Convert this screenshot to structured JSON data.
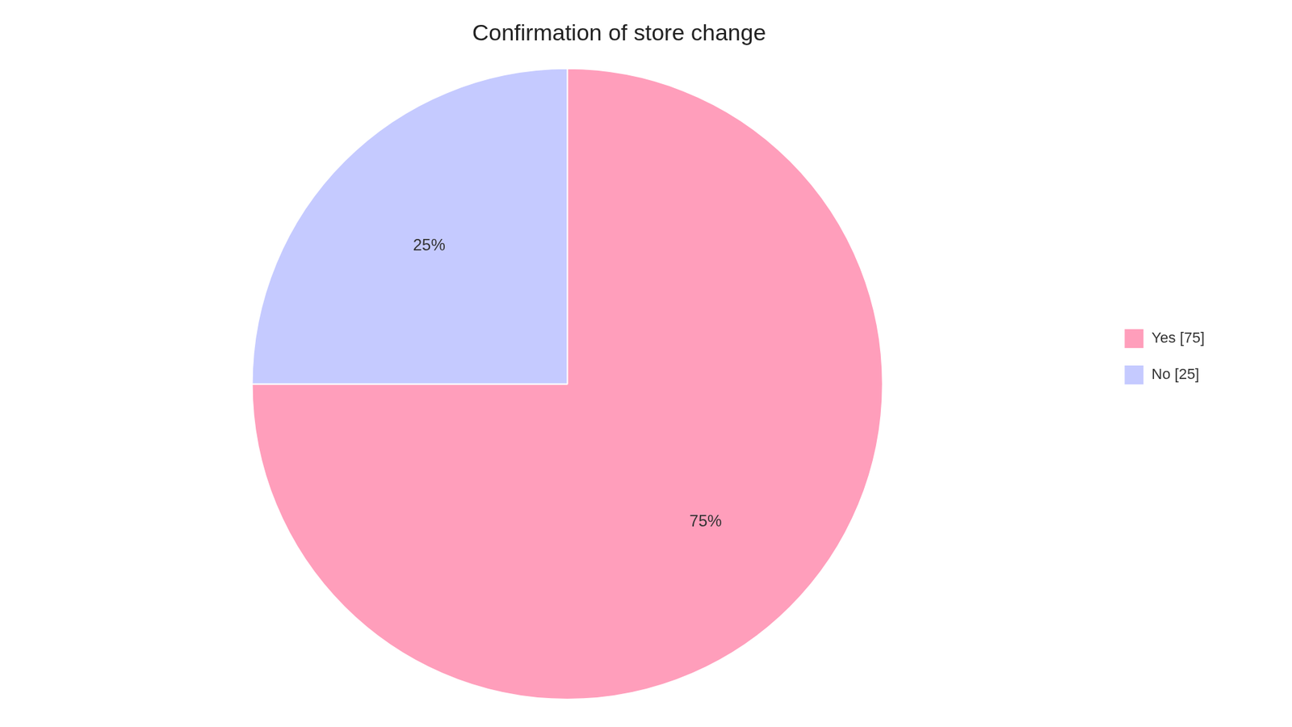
{
  "chart_data": {
    "type": "pie",
    "title": "Confirmation of store change",
    "categories": [
      "Yes [75]",
      "No [25]"
    ],
    "values": [
      75,
      25
    ],
    "value_labels": [
      "75%",
      "25%"
    ],
    "colors": [
      "#FF9EBB",
      "#C5CAFF"
    ],
    "data_labels": true,
    "legend": "right"
  }
}
